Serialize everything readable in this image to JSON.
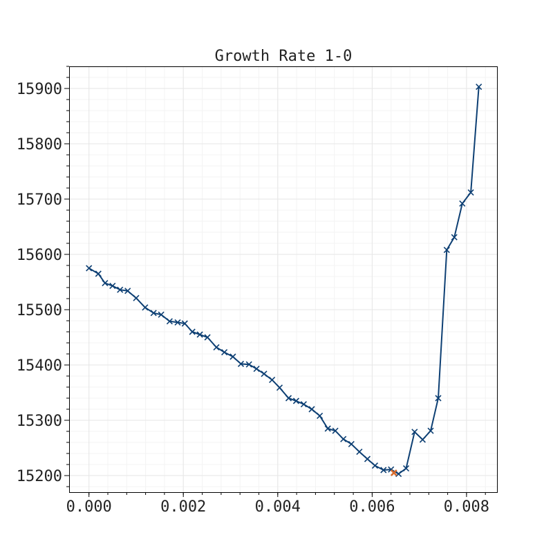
{
  "chart_data": {
    "type": "line",
    "title": "Growth Rate 1-0",
    "xlabel": "",
    "ylabel": "",
    "xlim": [
      -0.00042,
      0.00866
    ],
    "ylim": [
      15170,
      15940
    ],
    "x_ticks": [
      0.0,
      0.002,
      0.004,
      0.006,
      0.008
    ],
    "x_tick_labels": [
      "0.000",
      "0.002",
      "0.004",
      "0.006",
      "0.008"
    ],
    "y_ticks": [
      15200,
      15300,
      15400,
      15500,
      15600,
      15700,
      15800,
      15900
    ],
    "y_tick_labels": [
      "15200",
      "15300",
      "15400",
      "15500",
      "15600",
      "15700",
      "15800",
      "15900"
    ],
    "grid": true,
    "series": [
      {
        "color": "#0d3f73",
        "marker": "x",
        "x": [
          0.0,
          0.0002,
          0.00034,
          0.0005,
          0.00066,
          0.00082,
          0.001,
          0.00119,
          0.00137,
          0.00153,
          0.00171,
          0.00188,
          0.00203,
          0.00219,
          0.00235,
          0.00251,
          0.0027,
          0.00287,
          0.00305,
          0.00322,
          0.00339,
          0.00355,
          0.00371,
          0.00388,
          0.00404,
          0.00423,
          0.00439,
          0.00455,
          0.00472,
          0.00489,
          0.00506,
          0.00522,
          0.00539,
          0.00556,
          0.00573,
          0.0059,
          0.00606,
          0.00624,
          0.0064,
          0.00656,
          0.00672,
          0.0069,
          0.00707,
          0.00724,
          0.0074,
          0.00758,
          0.00774,
          0.00791,
          0.00809,
          0.00826
        ],
        "y": [
          15575,
          15565,
          15548,
          15543,
          15536,
          15534,
          15521,
          15504,
          15494,
          15491,
          15479,
          15477,
          15475,
          15460,
          15455,
          15450,
          15432,
          15423,
          15415,
          15402,
          15401,
          15393,
          15384,
          15373,
          15359,
          15340,
          15335,
          15329,
          15320,
          15308,
          15285,
          15281,
          15266,
          15257,
          15243,
          15230,
          15218,
          15210,
          15211,
          15203,
          15213,
          15279,
          15265,
          15281,
          15340,
          15608,
          15631,
          15692,
          15712,
          15903
        ]
      }
    ],
    "highlight": {
      "x": 0.00646,
      "y": 15205,
      "color": "#d96a2b"
    }
  }
}
